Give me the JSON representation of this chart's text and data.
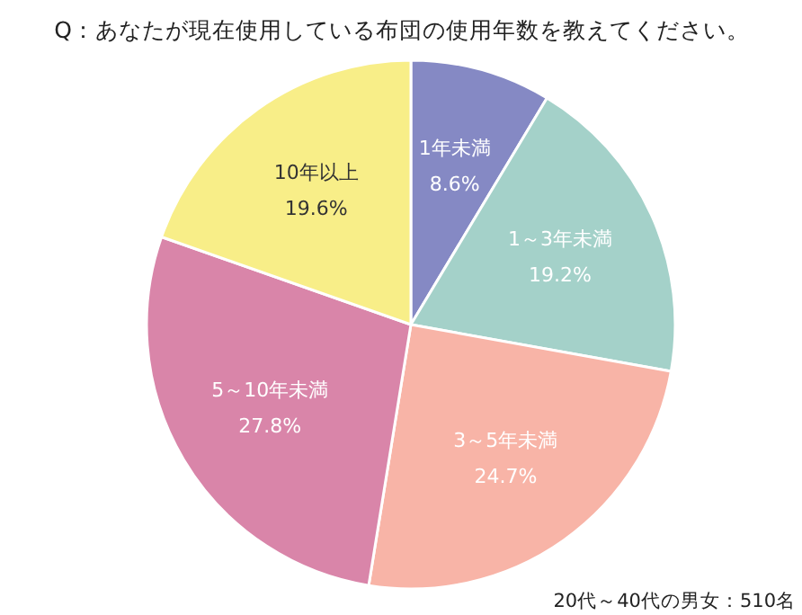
{
  "chart_data": {
    "type": "pie",
    "title": "Q：あなたが現在使用している布団の使用年数を教えてください。",
    "categories": [
      "1年未満",
      "1～3年未満",
      "3～5年未満",
      "5～10年未満",
      "10年以上"
    ],
    "values": [
      8.6,
      19.2,
      24.7,
      27.8,
      19.6
    ],
    "value_labels": [
      "8.6%",
      "19.2%",
      "24.7%",
      "27.8%",
      "19.6%"
    ],
    "colors": [
      "#8589c4",
      "#a4d1c9",
      "#f8b4a7",
      "#d985a9",
      "#f8ee88"
    ],
    "annotations": [
      "20代～40代の男女：510名"
    ]
  }
}
